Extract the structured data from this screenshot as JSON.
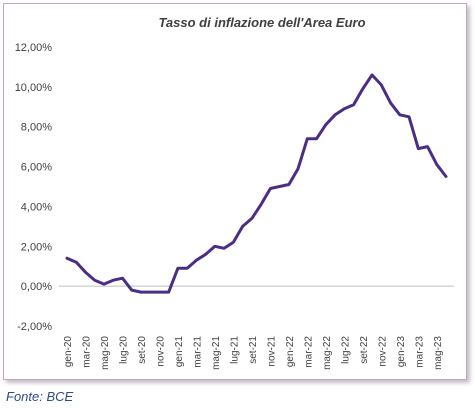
{
  "chart_data": {
    "type": "line",
    "title": "Tasso di inflazione dell'Area Euro",
    "xlabel": "",
    "ylabel": "",
    "ylim": [
      -2,
      12
    ],
    "yticks": [
      "-2,00%",
      "0,00%",
      "2,00%",
      "4,00%",
      "6,00%",
      "8,00%",
      "10,00%",
      "12,00%"
    ],
    "ytick_values": [
      -2,
      0,
      2,
      4,
      6,
      8,
      10,
      12
    ],
    "xtick_labels": [
      "gen-20",
      "mar-20",
      "mag-20",
      "lug-20",
      "set-20",
      "nov-20",
      "gen-21",
      "mar-21",
      "mag-21",
      "lug-21",
      "set-21",
      "nov-21",
      "gen-22",
      "mar-22",
      "mag-22",
      "lug-22",
      "set-22",
      "nov-22",
      "gen-23",
      "mar-23",
      "mag-23"
    ],
    "grid": false,
    "legend": "none",
    "line_color": "#4b2e83",
    "x": [
      "gen-20",
      "feb-20",
      "mar-20",
      "apr-20",
      "mag-20",
      "giu-20",
      "lug-20",
      "ago-20",
      "set-20",
      "ott-20",
      "nov-20",
      "dic-20",
      "gen-21",
      "feb-21",
      "mar-21",
      "apr-21",
      "mag-21",
      "giu-21",
      "lug-21",
      "ago-21",
      "set-21",
      "ott-21",
      "nov-21",
      "dic-21",
      "gen-22",
      "feb-22",
      "mar-22",
      "apr-22",
      "mag-22",
      "giu-22",
      "lug-22",
      "ago-22",
      "set-22",
      "ott-22",
      "nov-22",
      "dic-22",
      "gen-23",
      "feb-23",
      "mar-23",
      "apr-23",
      "mag-23",
      "giu-23"
    ],
    "series": [
      {
        "values": [
          1.4,
          1.2,
          0.7,
          0.3,
          0.1,
          0.3,
          0.4,
          -0.2,
          -0.3,
          -0.3,
          -0.3,
          -0.3,
          0.9,
          0.9,
          1.3,
          1.6,
          2.0,
          1.9,
          2.2,
          3.0,
          3.4,
          4.1,
          4.9,
          5.0,
          5.1,
          5.9,
          7.4,
          7.4,
          8.1,
          8.6,
          8.9,
          9.1,
          9.9,
          10.6,
          10.1,
          9.2,
          8.6,
          8.5,
          6.9,
          7.0,
          6.1,
          5.5
        ]
      }
    ]
  },
  "source": "Fonte: BCE"
}
